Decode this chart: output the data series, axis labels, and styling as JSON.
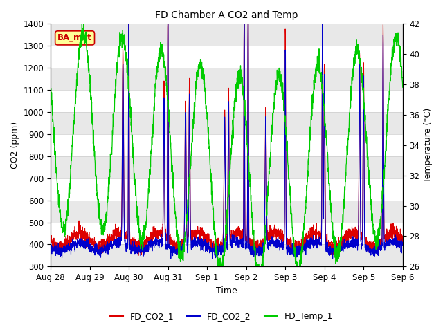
{
  "title": "FD Chamber A CO2 and Temp",
  "xlabel": "Time",
  "ylabel_left": "CO2 (ppm)",
  "ylabel_right": "Temperature (°C)",
  "ylim_left": [
    300,
    1400
  ],
  "ylim_right": [
    26,
    42
  ],
  "yticks_left": [
    300,
    400,
    500,
    600,
    700,
    800,
    900,
    1000,
    1100,
    1200,
    1300,
    1400
  ],
  "yticks_right": [
    26,
    28,
    30,
    32,
    34,
    36,
    38,
    40,
    42
  ],
  "xtick_labels": [
    "Aug 28",
    "Aug 29",
    "Aug 30",
    "Aug 31",
    "Sep 1",
    "Sep 2",
    "Sep 3",
    "Sep 4",
    "Sep 5",
    "Sep 6"
  ],
  "color_co2_1": "#dd0000",
  "color_co2_2": "#0000cc",
  "color_temp_1": "#00cc00",
  "plot_bg": "#ffffff",
  "stripe_color": "#e8e8e8",
  "annotation_text": "BA_met",
  "annotation_bg": "#ffff99",
  "annotation_border": "#cc0000",
  "legend_labels": [
    "FD_CO2_1",
    "FD_CO2_2",
    "FD_Temp_1"
  ],
  "grid_color": "#cccccc"
}
